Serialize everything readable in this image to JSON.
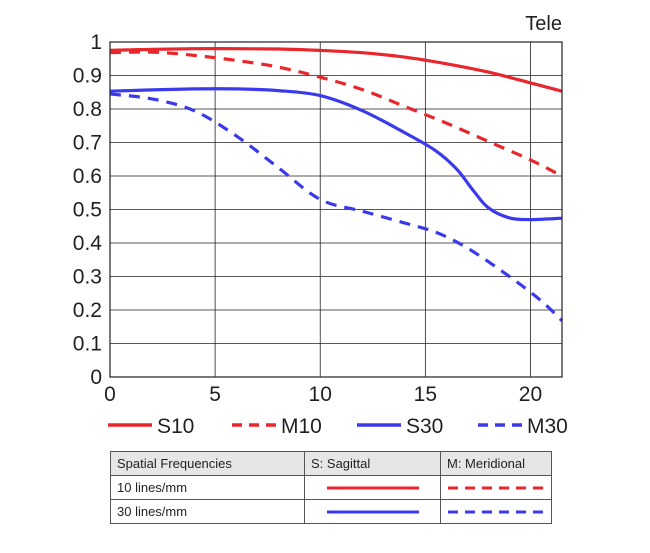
{
  "chart_data": {
    "type": "line",
    "title": "Tele",
    "xlim": [
      0,
      21.5
    ],
    "ylim": [
      0,
      1
    ],
    "xticks": [
      "0",
      "5",
      "10",
      "15",
      "20"
    ],
    "yticks": [
      "0",
      "0.1",
      "0.2",
      "0.3",
      "0.4",
      "0.5",
      "0.6",
      "0.7",
      "0.8",
      "0.9",
      "1"
    ],
    "grid": true,
    "legend_position": "below",
    "series": [
      {
        "name": "S10",
        "color": "#e8262b",
        "dashed": false,
        "points": [
          [
            0,
            0.975
          ],
          [
            2,
            0.978
          ],
          [
            4,
            0.98
          ],
          [
            6,
            0.98
          ],
          [
            8,
            0.979
          ],
          [
            10,
            0.975
          ],
          [
            12,
            0.968
          ],
          [
            14,
            0.955
          ],
          [
            16,
            0.935
          ],
          [
            18,
            0.91
          ],
          [
            20,
            0.878
          ],
          [
            21.5,
            0.853
          ]
        ]
      },
      {
        "name": "M10",
        "color": "#e8262b",
        "dashed": true,
        "points": [
          [
            0,
            0.968
          ],
          [
            2,
            0.97
          ],
          [
            4,
            0.96
          ],
          [
            6,
            0.945
          ],
          [
            8,
            0.925
          ],
          [
            10,
            0.895
          ],
          [
            12,
            0.858
          ],
          [
            14,
            0.808
          ],
          [
            16,
            0.758
          ],
          [
            18,
            0.703
          ],
          [
            20,
            0.648
          ],
          [
            21.5,
            0.6
          ]
        ]
      },
      {
        "name": "S30",
        "color": "#3a3aec",
        "dashed": false,
        "points": [
          [
            0,
            0.853
          ],
          [
            2,
            0.857
          ],
          [
            4,
            0.86
          ],
          [
            6,
            0.86
          ],
          [
            8,
            0.855
          ],
          [
            10,
            0.84
          ],
          [
            12,
            0.795
          ],
          [
            14,
            0.73
          ],
          [
            15.5,
            0.675
          ],
          [
            16.5,
            0.62
          ],
          [
            17.3,
            0.555
          ],
          [
            18,
            0.505
          ],
          [
            19,
            0.475
          ],
          [
            20,
            0.47
          ],
          [
            21.5,
            0.474
          ]
        ]
      },
      {
        "name": "M30",
        "color": "#3a3aec",
        "dashed": true,
        "points": [
          [
            0,
            0.845
          ],
          [
            2,
            0.83
          ],
          [
            4,
            0.795
          ],
          [
            6,
            0.72
          ],
          [
            8,
            0.625
          ],
          [
            10,
            0.53
          ],
          [
            12,
            0.495
          ],
          [
            14,
            0.46
          ],
          [
            15.5,
            0.432
          ],
          [
            17,
            0.385
          ],
          [
            19,
            0.3
          ],
          [
            20.5,
            0.228
          ],
          [
            21.5,
            0.168
          ]
        ]
      }
    ]
  },
  "key_table": {
    "headers": [
      "Spatial Frequencies",
      "S: Sagittal",
      "M: Meridional"
    ],
    "rows": [
      {
        "label": "10 lines/mm",
        "color": "#e8262b"
      },
      {
        "label": "30 lines/mm",
        "color": "#3a3aec"
      }
    ]
  }
}
